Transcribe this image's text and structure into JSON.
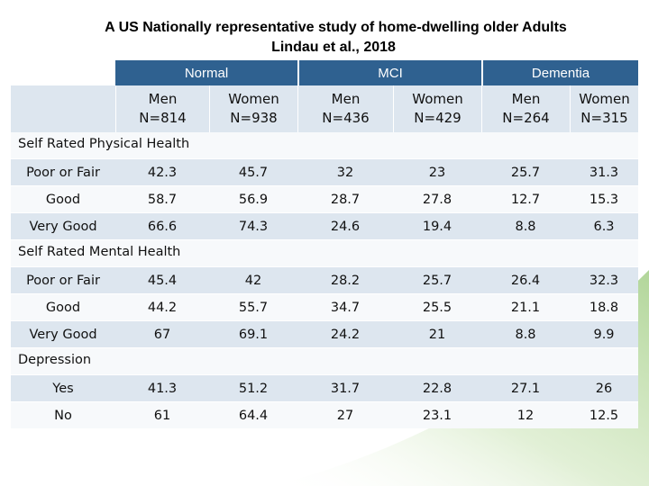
{
  "title": {
    "line1": "A US Nationally representative study of home-dwelling older Adults",
    "line2": "Lindau et al., 2018"
  },
  "colors": {
    "header_blue": "#2f6190",
    "row_shade": "#dde6ef",
    "swoosh_green": "#a9d18e"
  },
  "groups": [
    "Normal",
    "MCI",
    "Dementia"
  ],
  "subheaders": [
    {
      "sex": "Men",
      "n": "N=814"
    },
    {
      "sex": "Women",
      "n": "N=938"
    },
    {
      "sex": "Men",
      "n": "N=436"
    },
    {
      "sex": "Women",
      "n": "N=429"
    },
    {
      "sex": "Men",
      "n": "N=264"
    },
    {
      "sex": "Women",
      "n": "N=315"
    }
  ],
  "sections": [
    {
      "label": "Self Rated Physical Health",
      "rows": [
        {
          "label": "Poor or Fair",
          "values": [
            "42.3",
            "45.7",
            "32",
            "23",
            "25.7",
            "31.3"
          ]
        },
        {
          "label": "Good",
          "values": [
            "58.7",
            "56.9",
            "28.7",
            "27.8",
            "12.7",
            "15.3"
          ]
        },
        {
          "label": "Very Good",
          "values": [
            "66.6",
            "74.3",
            "24.6",
            "19.4",
            "8.8",
            "6.3"
          ]
        }
      ]
    },
    {
      "label": "Self Rated Mental Health",
      "rows": [
        {
          "label": "Poor or Fair",
          "values": [
            "45.4",
            "42",
            "28.2",
            "25.7",
            "26.4",
            "32.3"
          ]
        },
        {
          "label": "Good",
          "values": [
            "44.2",
            "55.7",
            "34.7",
            "25.5",
            "21.1",
            "18.8"
          ]
        },
        {
          "label": "Very Good",
          "values": [
            "67",
            "69.1",
            "24.2",
            "21",
            "8.8",
            "9.9"
          ]
        }
      ]
    },
    {
      "label": "Depression",
      "rows": [
        {
          "label": "Yes",
          "values": [
            "41.3",
            "51.2",
            "31.7",
            "22.8",
            "27.1",
            "26"
          ]
        },
        {
          "label": "No",
          "values": [
            "61",
            "64.4",
            "27",
            "23.1",
            "12",
            "12.5"
          ]
        }
      ]
    }
  ]
}
